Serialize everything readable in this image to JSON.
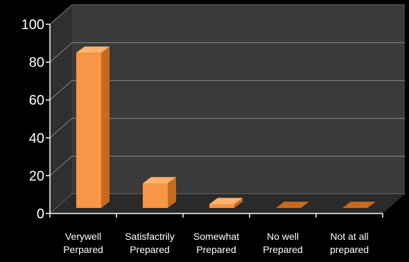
{
  "chart_data": {
    "type": "bar",
    "title": "",
    "xlabel": "",
    "ylabel": "",
    "ylim": [
      0,
      100
    ],
    "yticks": [
      0,
      20,
      40,
      60,
      80,
      100
    ],
    "categories": [
      [
        "Verywell",
        "Perpared"
      ],
      [
        "Satisfactrily",
        "Prepared"
      ],
      [
        "Somewhat",
        "Prepared"
      ],
      [
        "No well",
        "Prepared"
      ],
      [
        "Not at all",
        "prepared"
      ]
    ],
    "values": [
      82,
      13,
      2,
      0,
      0
    ],
    "grid": true,
    "style": "3d",
    "colors": {
      "background": "#000000",
      "wall": "#3a3a3a",
      "floor": "#2a2a2a",
      "grid": "#8a8a8a",
      "bar": "#f79646",
      "bar_side": "#c86a1e",
      "bar_top": "#ffb46e"
    }
  }
}
